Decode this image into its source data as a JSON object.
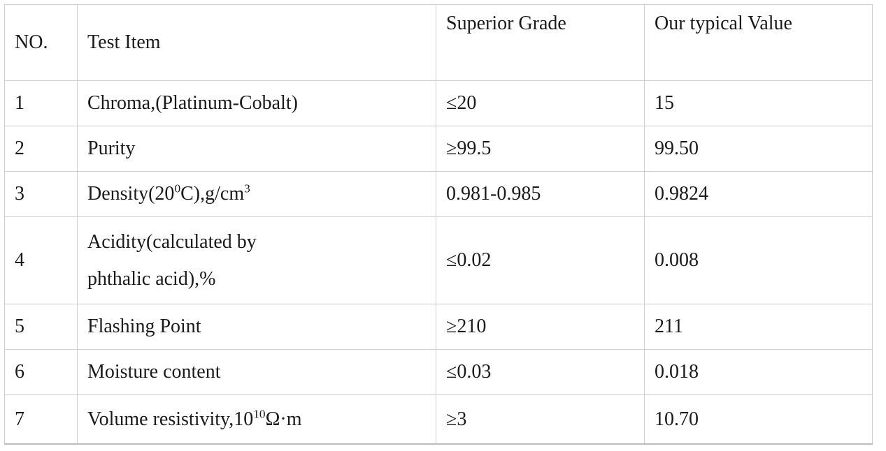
{
  "table": {
    "name": "product-specification-table",
    "columns": [
      "NO.",
      "Test Item",
      "Superior Grade",
      "Our typical Value"
    ],
    "rows": [
      {
        "no": "1",
        "item_runs": [
          {
            "t": "Chroma,(Platinum-Cobalt)"
          }
        ],
        "superior": "≤20",
        "typical": "15"
      },
      {
        "no": "2",
        "item_runs": [
          {
            "t": "Purity"
          }
        ],
        "superior": "≥99.5",
        "typical": "99.50"
      },
      {
        "no": "3",
        "item_runs": [
          {
            "t": "Density(20"
          },
          {
            "t": "0",
            "sup": true
          },
          {
            "t": "C),g/cm"
          },
          {
            "t": "3",
            "sup": true
          }
        ],
        "superior": "0.981-0.985",
        "typical": "0.9824"
      },
      {
        "no": "4",
        "item_runs": [
          {
            "t": "Acidity(calculated by"
          },
          {
            "br": true
          },
          {
            "t": "phthalic acid),%"
          }
        ],
        "superior": "≤0.02",
        "typical": "0.008"
      },
      {
        "no": "5",
        "item_runs": [
          {
            "t": "Flashing Point"
          }
        ],
        "superior": "≥210",
        "typical": "211"
      },
      {
        "no": "6",
        "item_runs": [
          {
            "t": "Moisture content"
          }
        ],
        "superior": "≤0.03",
        "typical": "0.018"
      },
      {
        "no": "7",
        "item_runs": [
          {
            "t": "Volume resistivity,10"
          },
          {
            "t": "10",
            "sup": true
          },
          {
            "t": "Ω·m"
          }
        ],
        "superior": "≥3",
        "typical": "10.70"
      }
    ]
  },
  "colors": {
    "grid_border": "#cfcfcf",
    "outer_border": "#c6c6c6",
    "text": "#1a1a1a",
    "background": "#ffffff"
  }
}
